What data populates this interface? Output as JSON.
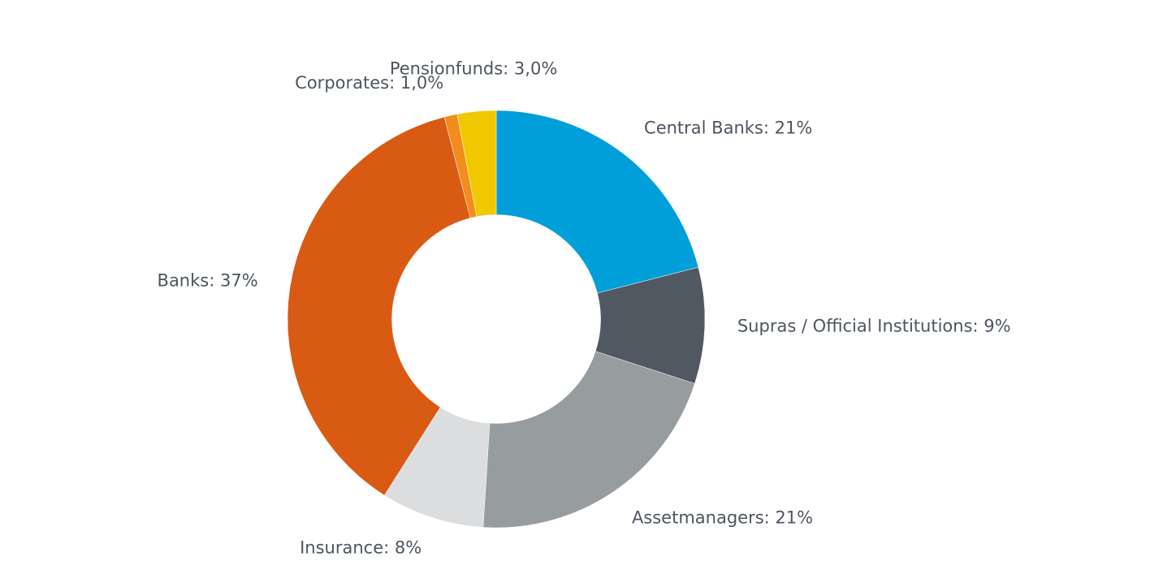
{
  "chart_data": {
    "type": "pie",
    "categories": [
      "Central Banks",
      "Supras / Official Institutions",
      "Assetmanagers",
      "Insurance",
      "Banks",
      "Corporates",
      "Pensionfunds"
    ],
    "values": [
      21,
      9,
      21,
      8,
      37,
      1.0,
      3.0
    ],
    "labels": [
      "Central Banks: 21%",
      "Supras / Official Institutions: 9%",
      "Assetmanagers: 21%",
      "Insurance: 8%",
      "Banks: 37%",
      "Corporates: 1,0%",
      "Pensionfunds: 3,0%"
    ],
    "colors": [
      "#009fda",
      "#505962",
      "#979c9f",
      "#dcdddf",
      "#d95a13",
      "#f28c1d",
      "#f0c800"
    ],
    "hole": 0.5
  }
}
